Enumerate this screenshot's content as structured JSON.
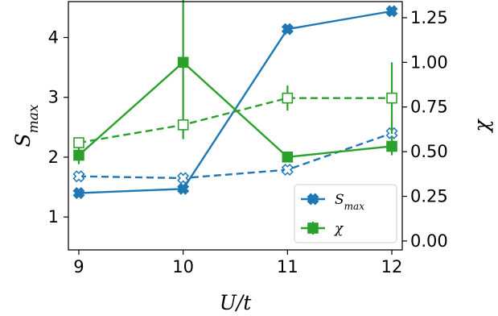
{
  "chart_data": {
    "type": "line",
    "x": [
      9,
      10,
      11,
      12
    ],
    "xlabel": "U/t",
    "xticks": [
      "9",
      "10",
      "11",
      "12"
    ],
    "xlim": [
      8.9,
      12.1
    ],
    "left_axis": {
      "label_base": "S",
      "label_sub": "max",
      "ylim": [
        0.45,
        4.6
      ],
      "ticks": [
        "1",
        "2",
        "3",
        "4"
      ],
      "tick_values": [
        1,
        2,
        3,
        4
      ]
    },
    "right_axis": {
      "label": "χ",
      "ylim": [
        -0.05,
        1.34
      ],
      "ticks": [
        "0.00",
        "0.25",
        "0.50",
        "0.75",
        "1.00",
        "1.25"
      ],
      "tick_values": [
        0,
        0.25,
        0.5,
        0.75,
        1.0,
        1.25
      ]
    },
    "series": [
      {
        "axis": "left",
        "color": "#1f77b4",
        "style": "solid",
        "marker": "x-filled",
        "values": [
          1.4,
          1.47,
          4.14,
          4.44
        ]
      },
      {
        "axis": "left",
        "color": "#1f77b4",
        "style": "dashed",
        "marker": "x-open",
        "values": [
          1.68,
          1.65,
          1.79,
          2.4
        ]
      },
      {
        "axis": "right",
        "color": "#2ca02c",
        "style": "solid",
        "marker": "square-filled",
        "values": [
          0.48,
          1.0,
          0.47,
          0.53
        ],
        "errors": [
          0.05,
          0.43,
          0.03,
          0.05
        ]
      },
      {
        "axis": "right",
        "color": "#2ca02c",
        "style": "dashed",
        "marker": "square-open",
        "values": [
          0.55,
          0.65,
          0.8,
          0.8
        ],
        "errors": [
          0.03,
          0.03,
          0.07,
          0.2
        ]
      }
    ],
    "legend": {
      "position": "bottom-right",
      "items": [
        {
          "label_base": "S",
          "label_sub": "max",
          "color": "#1f77b4",
          "marker": "x-filled"
        },
        {
          "label": "χ",
          "color": "#2ca02c",
          "marker": "square-filled"
        }
      ]
    }
  }
}
